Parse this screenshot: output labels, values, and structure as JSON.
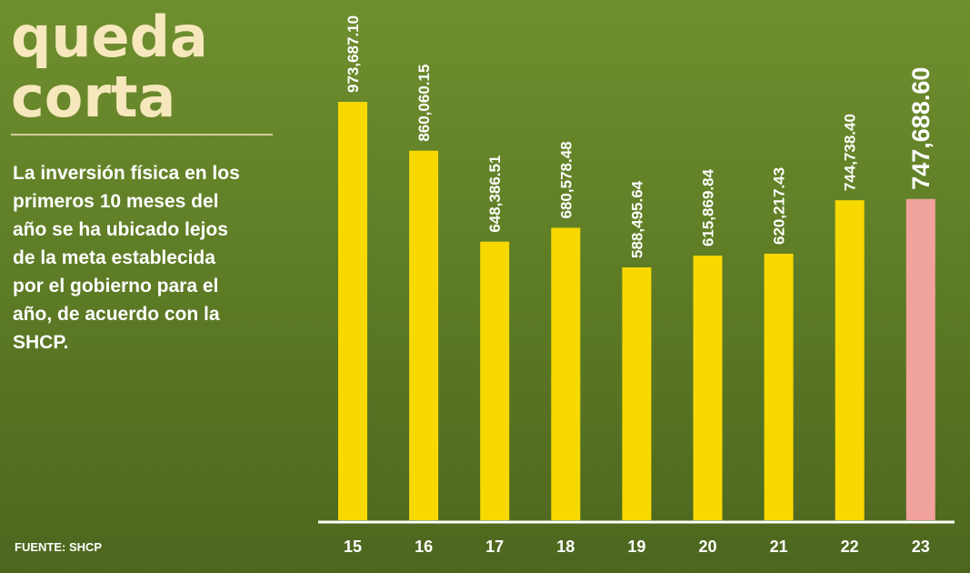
{
  "chart_data": {
    "type": "bar",
    "title": [
      "queda",
      "corta"
    ],
    "description": [
      "La inversión física en los",
      "primeros 10 meses del",
      "año se ha ubicado lejos",
      "de la meta establecida",
      "por el gobierno para el",
      "año, de acuerdo con la",
      "SHCP."
    ],
    "source": "FUENTE: SHCP",
    "categories": [
      "15",
      "16",
      "17",
      "18",
      "19",
      "20",
      "21",
      "22",
      "23"
    ],
    "values": [
      973687.1,
      860060.15,
      648386.51,
      680578.48,
      588495.64,
      615869.84,
      620217.43,
      744738.4,
      747688.6
    ],
    "value_labels": [
      "973,687.10",
      "860,060.15",
      "648,386.51",
      "680,578.48",
      "588,495.64",
      "615,869.84",
      "620,217.43",
      "744,738.40",
      "747,688.60"
    ],
    "colors": [
      "#f7d900",
      "#f7d900",
      "#f7d900",
      "#f7d900",
      "#f7d900",
      "#f7d900",
      "#f7d900",
      "#f7d900",
      "#f0a29c"
    ]
  }
}
